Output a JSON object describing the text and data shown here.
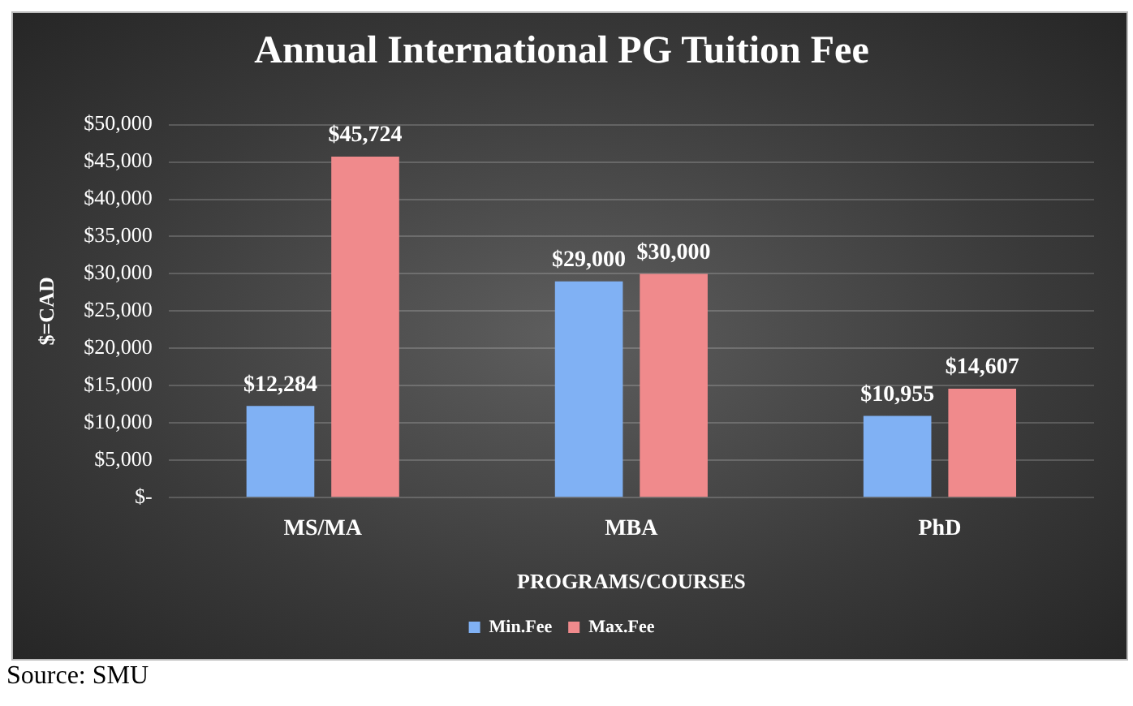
{
  "chart_data": {
    "type": "bar",
    "title": "Annual International PG Tuition Fee",
    "xlabel": "PROGRAMS/COURSES",
    "ylabel": "$=CAD",
    "categories": [
      "MS/MA",
      "MBA",
      "PhD"
    ],
    "series": [
      {
        "name": "Min.Fee",
        "color": "#80b1f4",
        "values": [
          12284,
          29000,
          10955
        ],
        "value_labels": [
          "$12,284",
          "$29,000",
          "$10,955"
        ]
      },
      {
        "name": "Max.Fee",
        "color": "#f08a8c",
        "values": [
          45724,
          30000,
          14607
        ],
        "value_labels": [
          "$45,724",
          "$30,000",
          "$14,607"
        ]
      }
    ],
    "ylim": [
      0,
      50000
    ],
    "yticks": [
      {
        "value": 0,
        "label": "$-"
      },
      {
        "value": 5000,
        "label": "$5,000"
      },
      {
        "value": 10000,
        "label": "$10,000"
      },
      {
        "value": 15000,
        "label": "$15,000"
      },
      {
        "value": 20000,
        "label": "$20,000"
      },
      {
        "value": 25000,
        "label": "$25,000"
      },
      {
        "value": 30000,
        "label": "$30,000"
      },
      {
        "value": 35000,
        "label": "$35,000"
      },
      {
        "value": 40000,
        "label": "$40,000"
      },
      {
        "value": 45000,
        "label": "$45,000"
      },
      {
        "value": 50000,
        "label": "$50,000"
      }
    ],
    "grid": "y",
    "legend": "bottom",
    "annotations": [
      "Source: SMU"
    ]
  }
}
